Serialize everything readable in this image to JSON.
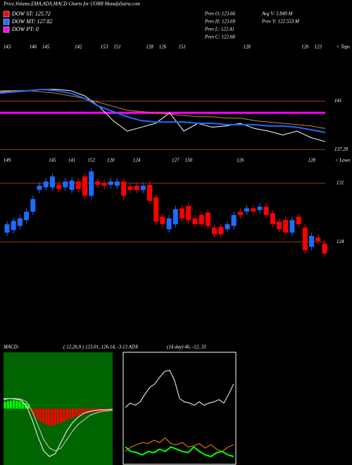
{
  "title": "Price,Volume,EMA,ADX,MACD Charts for UOBB MunafaSutra.com",
  "legend": [
    {
      "label": "DOW ST: 125.72",
      "color": "#ff0000"
    },
    {
      "label": "DOW MT: 127.82",
      "color": "#1e6bff"
    },
    {
      "label": "DOW PT: 0",
      "color": "#ff00ff"
    }
  ],
  "info": [
    "Prev  O: 123.66",
    "Prev  H: 123.69",
    "Prev  L: 122.41",
    "Prev  C: 122.68",
    "Avg V: 3.849 M",
    "Prev  V: 122.553 M"
  ],
  "chart_data": [
    {
      "type": "line",
      "ylim": [
        136.6,
        144.7
      ],
      "yticks": [
        141,
        137.29
      ],
      "tops_marker": "< Tops",
      "top_labels": [
        "143",
        null,
        null,
        null,
        "146",
        null,
        "145",
        null,
        null,
        null,
        null,
        "142",
        null,
        null,
        null,
        "153",
        null,
        "151",
        null,
        null,
        null,
        null,
        "128",
        null,
        "126",
        null,
        null,
        "151",
        null,
        null,
        null,
        null,
        null,
        null,
        null,
        null,
        null,
        "128",
        null,
        null,
        null,
        null,
        null,
        null,
        null,
        null,
        "126",
        null,
        "123",
        null
      ],
      "hline": {
        "value": 140.1,
        "color": "#ff00ff"
      },
      "grid_color": "#8b4513",
      "lines": [
        {
          "color": "#ffffff",
          "values": [
            141.7,
            141.8,
            141.8,
            141.9,
            141.9,
            141.8,
            141.4,
            140.6,
            139.5,
            138.7,
            139.0,
            139.3,
            140.1,
            138.7,
            139.3,
            139.0,
            139.1,
            139.3,
            138.9,
            138.7,
            138.4,
            138.7,
            138.2,
            137.9
          ]
        },
        {
          "color": "#c08040",
          "values": [
            141.8,
            141.8,
            141.8,
            141.7,
            141.6,
            141.4,
            141.2,
            140.9,
            140.6,
            140.3,
            140.2,
            140.1,
            140.0,
            139.9,
            139.8,
            139.8,
            139.7,
            139.7,
            139.5,
            139.4,
            139.3,
            139.2,
            139.1,
            138.9
          ]
        },
        {
          "color": "#1e6bff",
          "values": [
            141.6,
            141.7,
            141.8,
            141.9,
            141.8,
            141.6,
            141.2,
            140.6,
            140.2,
            139.8,
            139.5,
            139.4,
            139.4,
            139.4,
            139.3,
            139.3,
            139.2,
            139.2,
            139.2,
            139.1,
            139.1,
            139.0,
            138.8,
            138.6
          ]
        }
      ]
    },
    {
      "type": "candlestick",
      "ylim": [
        112.5,
        133.1
      ],
      "yticks": [
        131,
        124
      ],
      "lows_marker": "< Lows",
      "up_color": "#1e6bff",
      "down_color": "#ff0000",
      "grid_color": "#8b4513",
      "low_labels": [
        "149",
        null,
        null,
        null,
        null,
        null,
        null,
        "145",
        null,
        null,
        "141",
        null,
        null,
        "152",
        null,
        null,
        "120",
        null,
        null,
        null,
        "124",
        null,
        null,
        null,
        null,
        null,
        "127",
        null,
        "130",
        null,
        null,
        null,
        null,
        null,
        null,
        null,
        "126",
        null,
        null,
        null,
        null,
        null,
        null,
        null,
        null,
        null,
        null,
        "128",
        null,
        null
      ],
      "ohlc": [
        [
          125.1,
          126.5,
          124.7,
          126.1
        ],
        [
          125.4,
          126.9,
          125.0,
          126.5
        ],
        [
          125.9,
          127.2,
          125.5,
          126.8
        ],
        [
          126.6,
          128.0,
          126.2,
          127.6
        ],
        [
          127.6,
          129.5,
          127.2,
          129.1
        ],
        [
          130.2,
          131.1,
          129.8,
          130.7
        ],
        [
          130.5,
          131.6,
          130.1,
          131.2
        ],
        [
          130.5,
          132.2,
          130.1,
          131.8
        ],
        [
          130.8,
          131.2,
          129.9,
          130.3
        ],
        [
          130.5,
          131.6,
          130.1,
          131.2
        ],
        [
          130.2,
          131.7,
          129.8,
          131.3
        ],
        [
          131.2,
          131.6,
          129.9,
          130.3
        ],
        [
          131.8,
          132.2,
          129.1,
          129.5
        ],
        [
          129.5,
          132.8,
          129.1,
          132.4
        ],
        [
          131.2,
          131.6,
          130.4,
          130.8
        ],
        [
          131.0,
          131.4,
          130.3,
          130.7
        ],
        [
          130.8,
          131.6,
          130.4,
          131.2
        ],
        [
          130.7,
          131.6,
          130.3,
          131.2
        ],
        [
          131.2,
          131.6,
          129.1,
          129.5
        ],
        [
          130.6,
          131.0,
          129.8,
          130.2
        ],
        [
          130.7,
          131.1,
          129.8,
          130.2
        ],
        [
          130.2,
          131.1,
          129.8,
          130.7
        ],
        [
          130.8,
          131.2,
          128.5,
          128.9
        ],
        [
          129.3,
          129.7,
          126.0,
          126.4
        ],
        [
          127.0,
          127.4,
          125.7,
          126.1
        ],
        [
          125.5,
          127.2,
          125.1,
          126.8
        ],
        [
          126.1,
          128.3,
          125.7,
          127.9
        ],
        [
          128.0,
          128.4,
          126.4,
          126.8
        ],
        [
          128.3,
          128.7,
          126.2,
          126.6
        ],
        [
          126.8,
          127.2,
          125.7,
          126.1
        ],
        [
          127.2,
          127.6,
          125.7,
          126.1
        ],
        [
          127.5,
          127.9,
          125.5,
          125.9
        ],
        [
          125.7,
          126.1,
          124.5,
          124.9
        ],
        [
          125.8,
          126.2,
          124.5,
          124.9
        ],
        [
          125.5,
          126.5,
          125.1,
          126.1
        ],
        [
          125.9,
          127.6,
          125.5,
          127.2
        ],
        [
          127.6,
          128.0,
          126.8,
          127.2
        ],
        [
          127.6,
          128.4,
          127.2,
          128.0
        ],
        [
          128.0,
          128.4,
          127.2,
          127.6
        ],
        [
          127.8,
          128.6,
          127.4,
          128.2
        ],
        [
          128.2,
          128.6,
          126.8,
          127.2
        ],
        [
          127.4,
          127.8,
          125.7,
          126.1
        ],
        [
          126.4,
          126.8,
          125.1,
          125.5
        ],
        [
          126.6,
          127.0,
          124.7,
          125.1
        ],
        [
          125.1,
          127.0,
          124.7,
          126.6
        ],
        [
          127.0,
          127.4,
          125.7,
          126.1
        ],
        [
          125.7,
          126.1,
          122.6,
          123.0
        ],
        [
          123.4,
          125.1,
          123.0,
          124.7
        ],
        [
          124.5,
          124.9,
          123.7,
          124.1
        ],
        [
          123.8,
          124.2,
          122.2,
          122.6
        ]
      ]
    },
    {
      "type": "macd",
      "label": "MACD:",
      "params": "( 12,26,9 ) 123.01, 126.14, -3.13 ADX",
      "ylim": [
        -10,
        10
      ],
      "background": "#006400",
      "pos_color": "#00ff00",
      "neg_color": "#ff0000",
      "histogram": [
        1.2,
        1.3,
        1.4,
        1.5,
        1.4,
        1.3,
        1.2,
        1.0,
        0.8,
        -0.5,
        -1.2,
        -1.8,
        -2.3,
        -2.6,
        -2.8,
        -3.0,
        -3.0,
        -2.9,
        -2.7,
        -2.5,
        -2.3,
        -2.0,
        -1.8,
        -1.6,
        -1.4,
        -1.2,
        -1.0,
        -0.9,
        -0.8,
        -0.7,
        -0.6,
        -0.6,
        -0.5,
        -0.5,
        -0.4,
        -0.4,
        -0.3
      ],
      "lines": [
        {
          "color": "#ffffff",
          "values": [
            1.6,
            1.8,
            1.7,
            1.5,
            0.5,
            -2,
            -5,
            -7.5,
            -8.5,
            -8,
            -6,
            -4,
            -2.5,
            -1.5,
            -0.8,
            -0.5,
            -0.3,
            -0.2,
            -0.2,
            -0.1
          ]
        },
        {
          "color": "#d0d0d0",
          "values": [
            1.8,
            1.8,
            1.8,
            1.7,
            1.2,
            -0.5,
            -3,
            -5.5,
            -7,
            -7.5,
            -7,
            -5.5,
            -4,
            -2.8,
            -2,
            -1.2,
            -0.8,
            -0.5,
            -0.4,
            -0.3
          ]
        }
      ]
    },
    {
      "type": "adx",
      "params": "(14 day) 46, -12, 33",
      "ylim": [
        0,
        100
      ],
      "lines": [
        {
          "color": "#ffffff",
          "values": [
            51,
            55,
            53,
            56,
            63,
            69,
            72,
            78,
            83,
            84,
            75,
            59,
            56,
            55,
            53,
            56,
            53,
            55,
            56,
            58,
            55,
            63,
            72
          ]
        },
        {
          "color": "#ff8c00",
          "values": [
            12,
            16,
            18,
            20,
            19,
            22,
            20,
            24,
            19,
            18,
            20,
            16,
            17,
            19,
            15,
            18,
            14,
            12,
            16,
            18
          ]
        },
        {
          "color": "#00ff00",
          "values": [
            16,
            12,
            11,
            9,
            12,
            11,
            14,
            12,
            16,
            14,
            12,
            11,
            16,
            12,
            9,
            7.5,
            11,
            12,
            9,
            7.5
          ]
        }
      ]
    }
  ]
}
